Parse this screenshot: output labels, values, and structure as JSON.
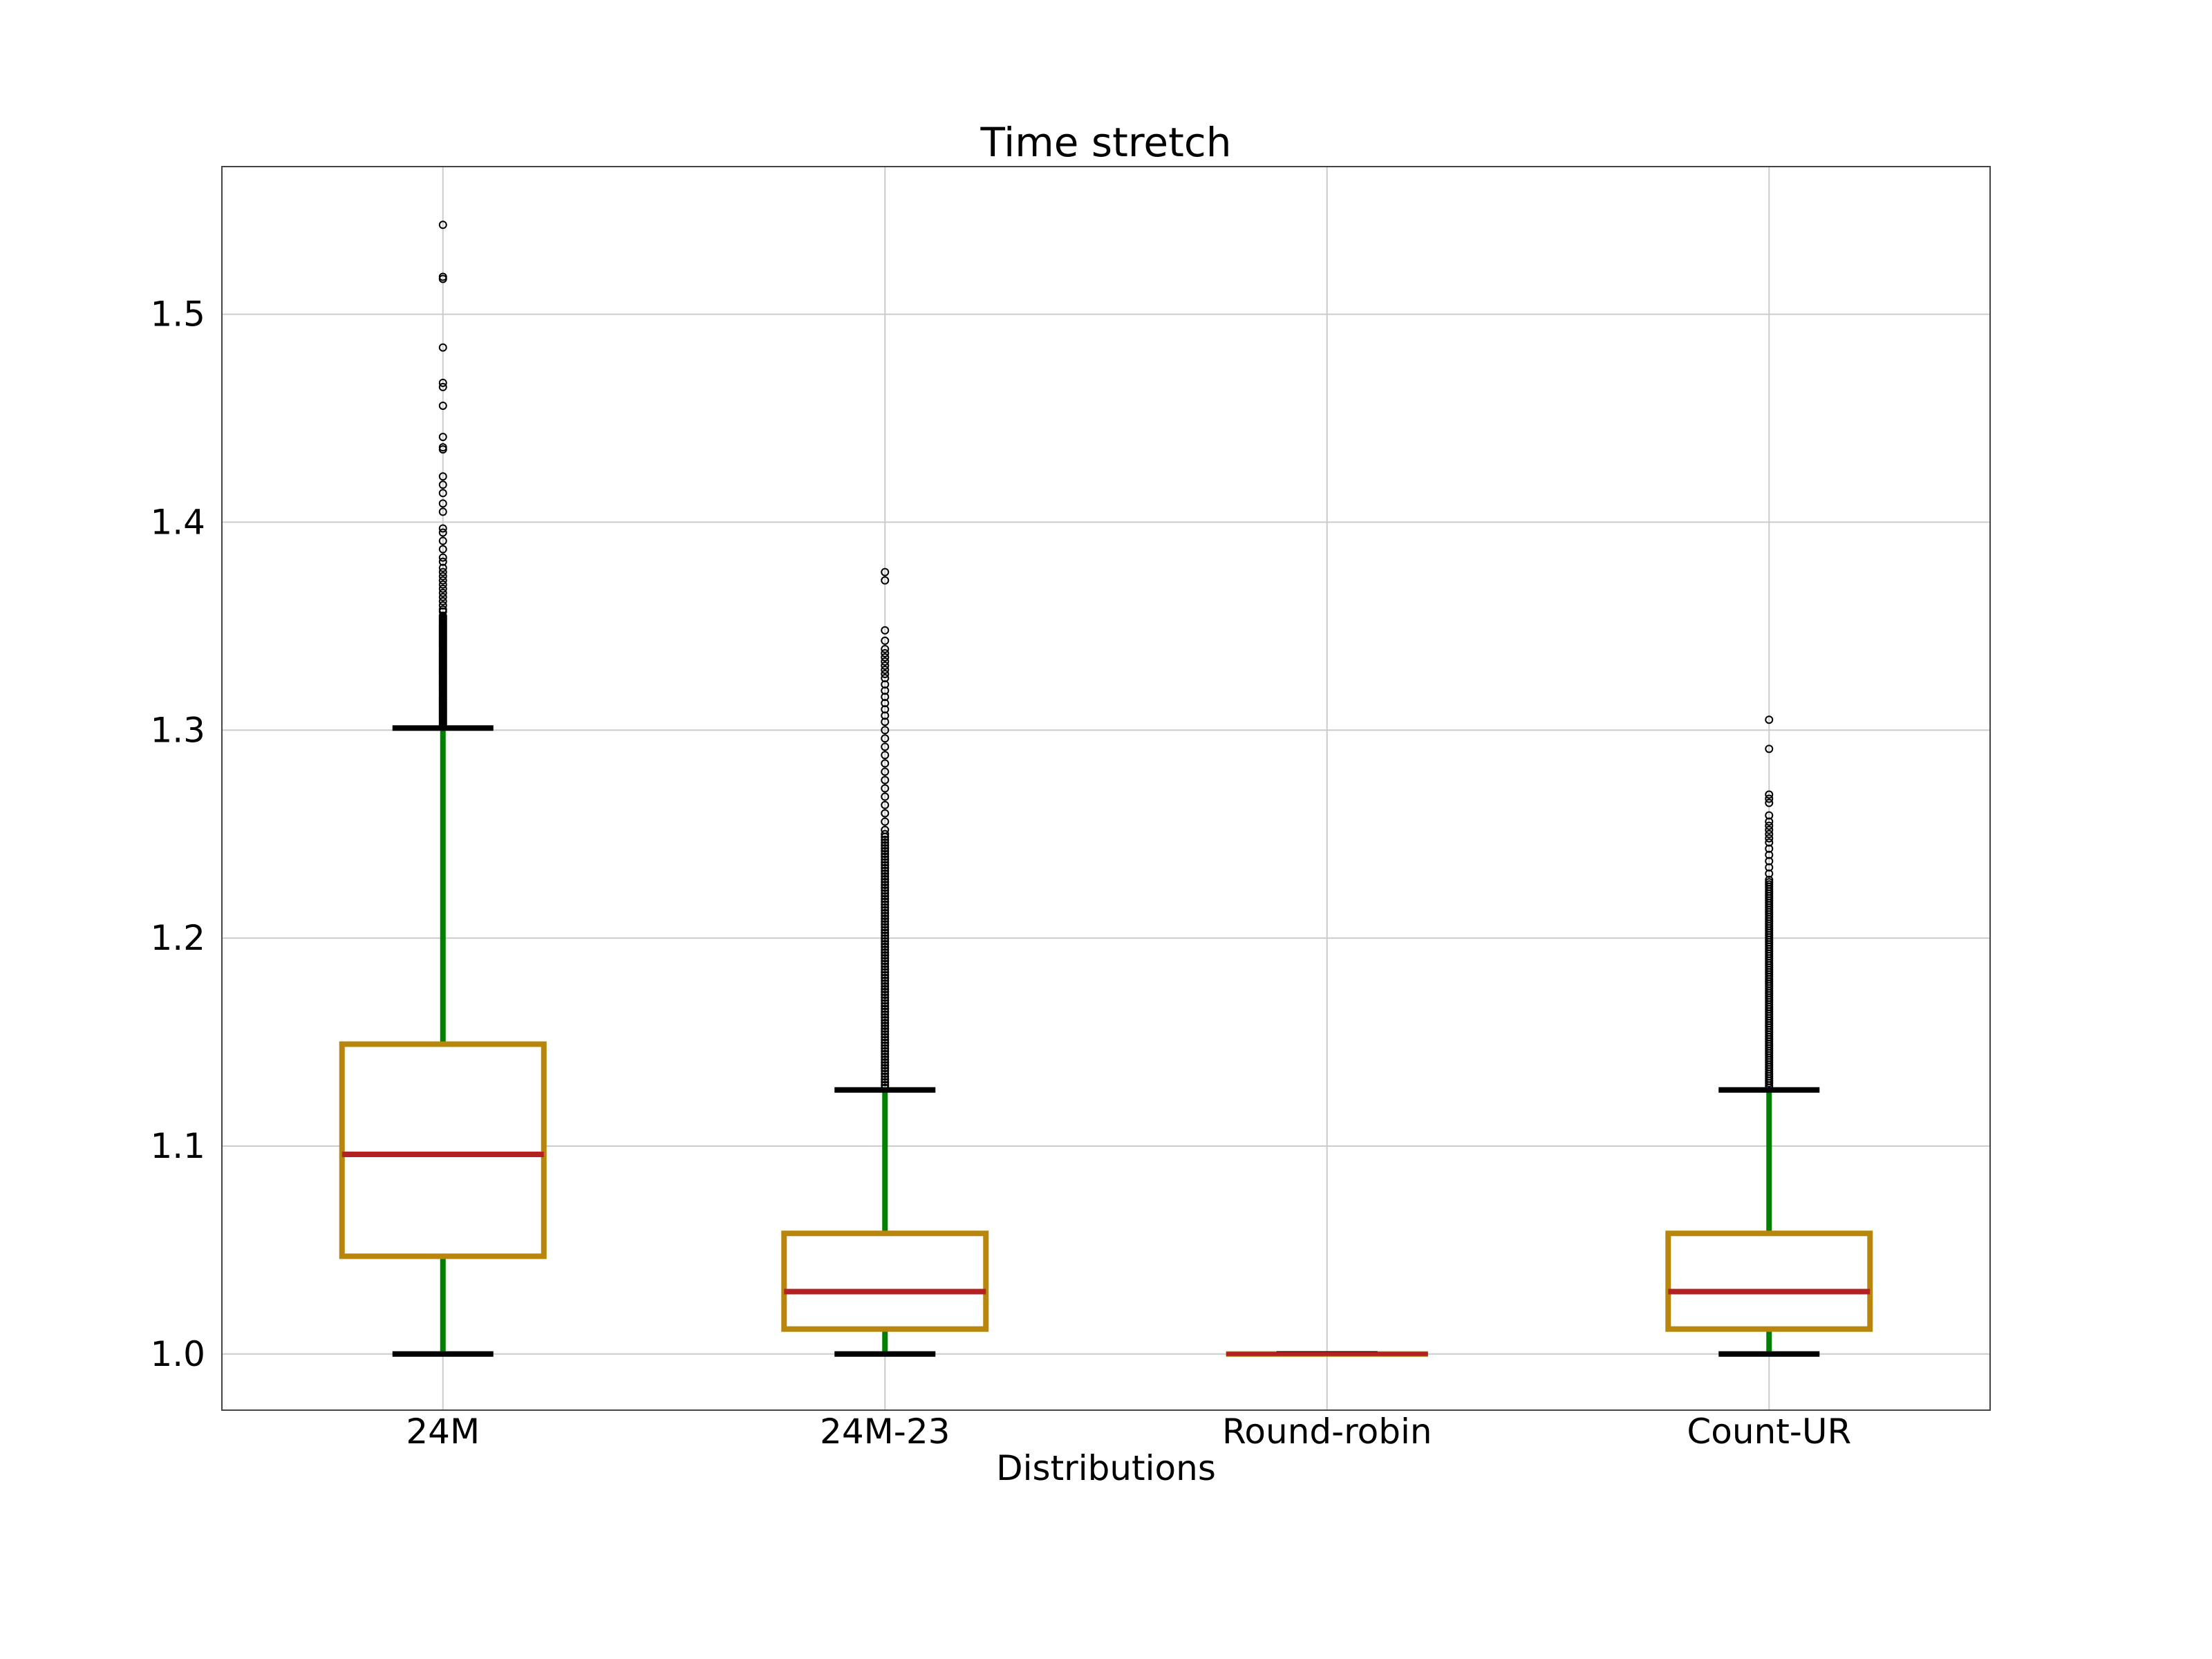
{
  "chart_data": {
    "type": "box",
    "title": "Time stretch",
    "xlabel": "Distributions",
    "ylabel": "",
    "ylim": [
      0.973,
      1.571
    ],
    "yticks": [
      1.0,
      1.1,
      1.2,
      1.3,
      1.4,
      1.5
    ],
    "ytick_labels": [
      "1.0",
      "1.1",
      "1.2",
      "1.3",
      "1.4",
      "1.5"
    ],
    "grid": true,
    "colors": {
      "box": "#b8860b",
      "median": "#b22222",
      "whisker": "#008000",
      "cap": "#000000",
      "flier": "#000000",
      "grid": "#cccccc"
    },
    "categories": [
      "24M",
      "24M-23",
      "Round-robin",
      "Count-UR"
    ],
    "boxes": [
      {
        "label": "24M",
        "whisker_low": 1.0,
        "q1": 1.047,
        "median": 1.096,
        "q3": 1.149,
        "whisker_high": 1.301,
        "fliers_band": [
          1.302,
          1.355
        ],
        "fliers": [
          1.543,
          1.517,
          1.518,
          1.484,
          1.467,
          1.465,
          1.456,
          1.441,
          1.436,
          1.435,
          1.422,
          1.418,
          1.414,
          1.409,
          1.405,
          1.397,
          1.395,
          1.391,
          1.387,
          1.383,
          1.381,
          1.378,
          1.376,
          1.374,
          1.372,
          1.37,
          1.368,
          1.366,
          1.364,
          1.362,
          1.36,
          1.358,
          1.357
        ]
      },
      {
        "label": "24M-23",
        "whisker_low": 1.0,
        "q1": 1.012,
        "median": 1.03,
        "q3": 1.058,
        "whisker_high": 1.127,
        "fliers_band": [
          1.128,
          1.25
        ],
        "fliers": [
          1.376,
          1.372,
          1.348,
          1.343,
          1.339,
          1.337,
          1.335,
          1.333,
          1.331,
          1.329,
          1.327,
          1.325,
          1.322,
          1.319,
          1.316,
          1.313,
          1.31,
          1.307,
          1.304,
          1.3,
          1.296,
          1.292,
          1.288,
          1.284,
          1.28,
          1.276,
          1.272,
          1.268,
          1.264,
          1.26,
          1.256,
          1.252
        ]
      },
      {
        "label": "Round-robin",
        "whisker_low": 1.0,
        "q1": 1.0,
        "median": 1.0,
        "q3": 1.0,
        "whisker_high": 1.0,
        "fliers_band": null,
        "fliers": []
      },
      {
        "label": "Count-UR",
        "whisker_low": 1.0,
        "q1": 1.012,
        "median": 1.03,
        "q3": 1.058,
        "whisker_high": 1.127,
        "fliers_band": [
          1.128,
          1.228
        ],
        "fliers": [
          1.305,
          1.291,
          1.269,
          1.267,
          1.265,
          1.259,
          1.256,
          1.254,
          1.252,
          1.25,
          1.248,
          1.246,
          1.243,
          1.24,
          1.237,
          1.234,
          1.231
        ]
      }
    ]
  }
}
